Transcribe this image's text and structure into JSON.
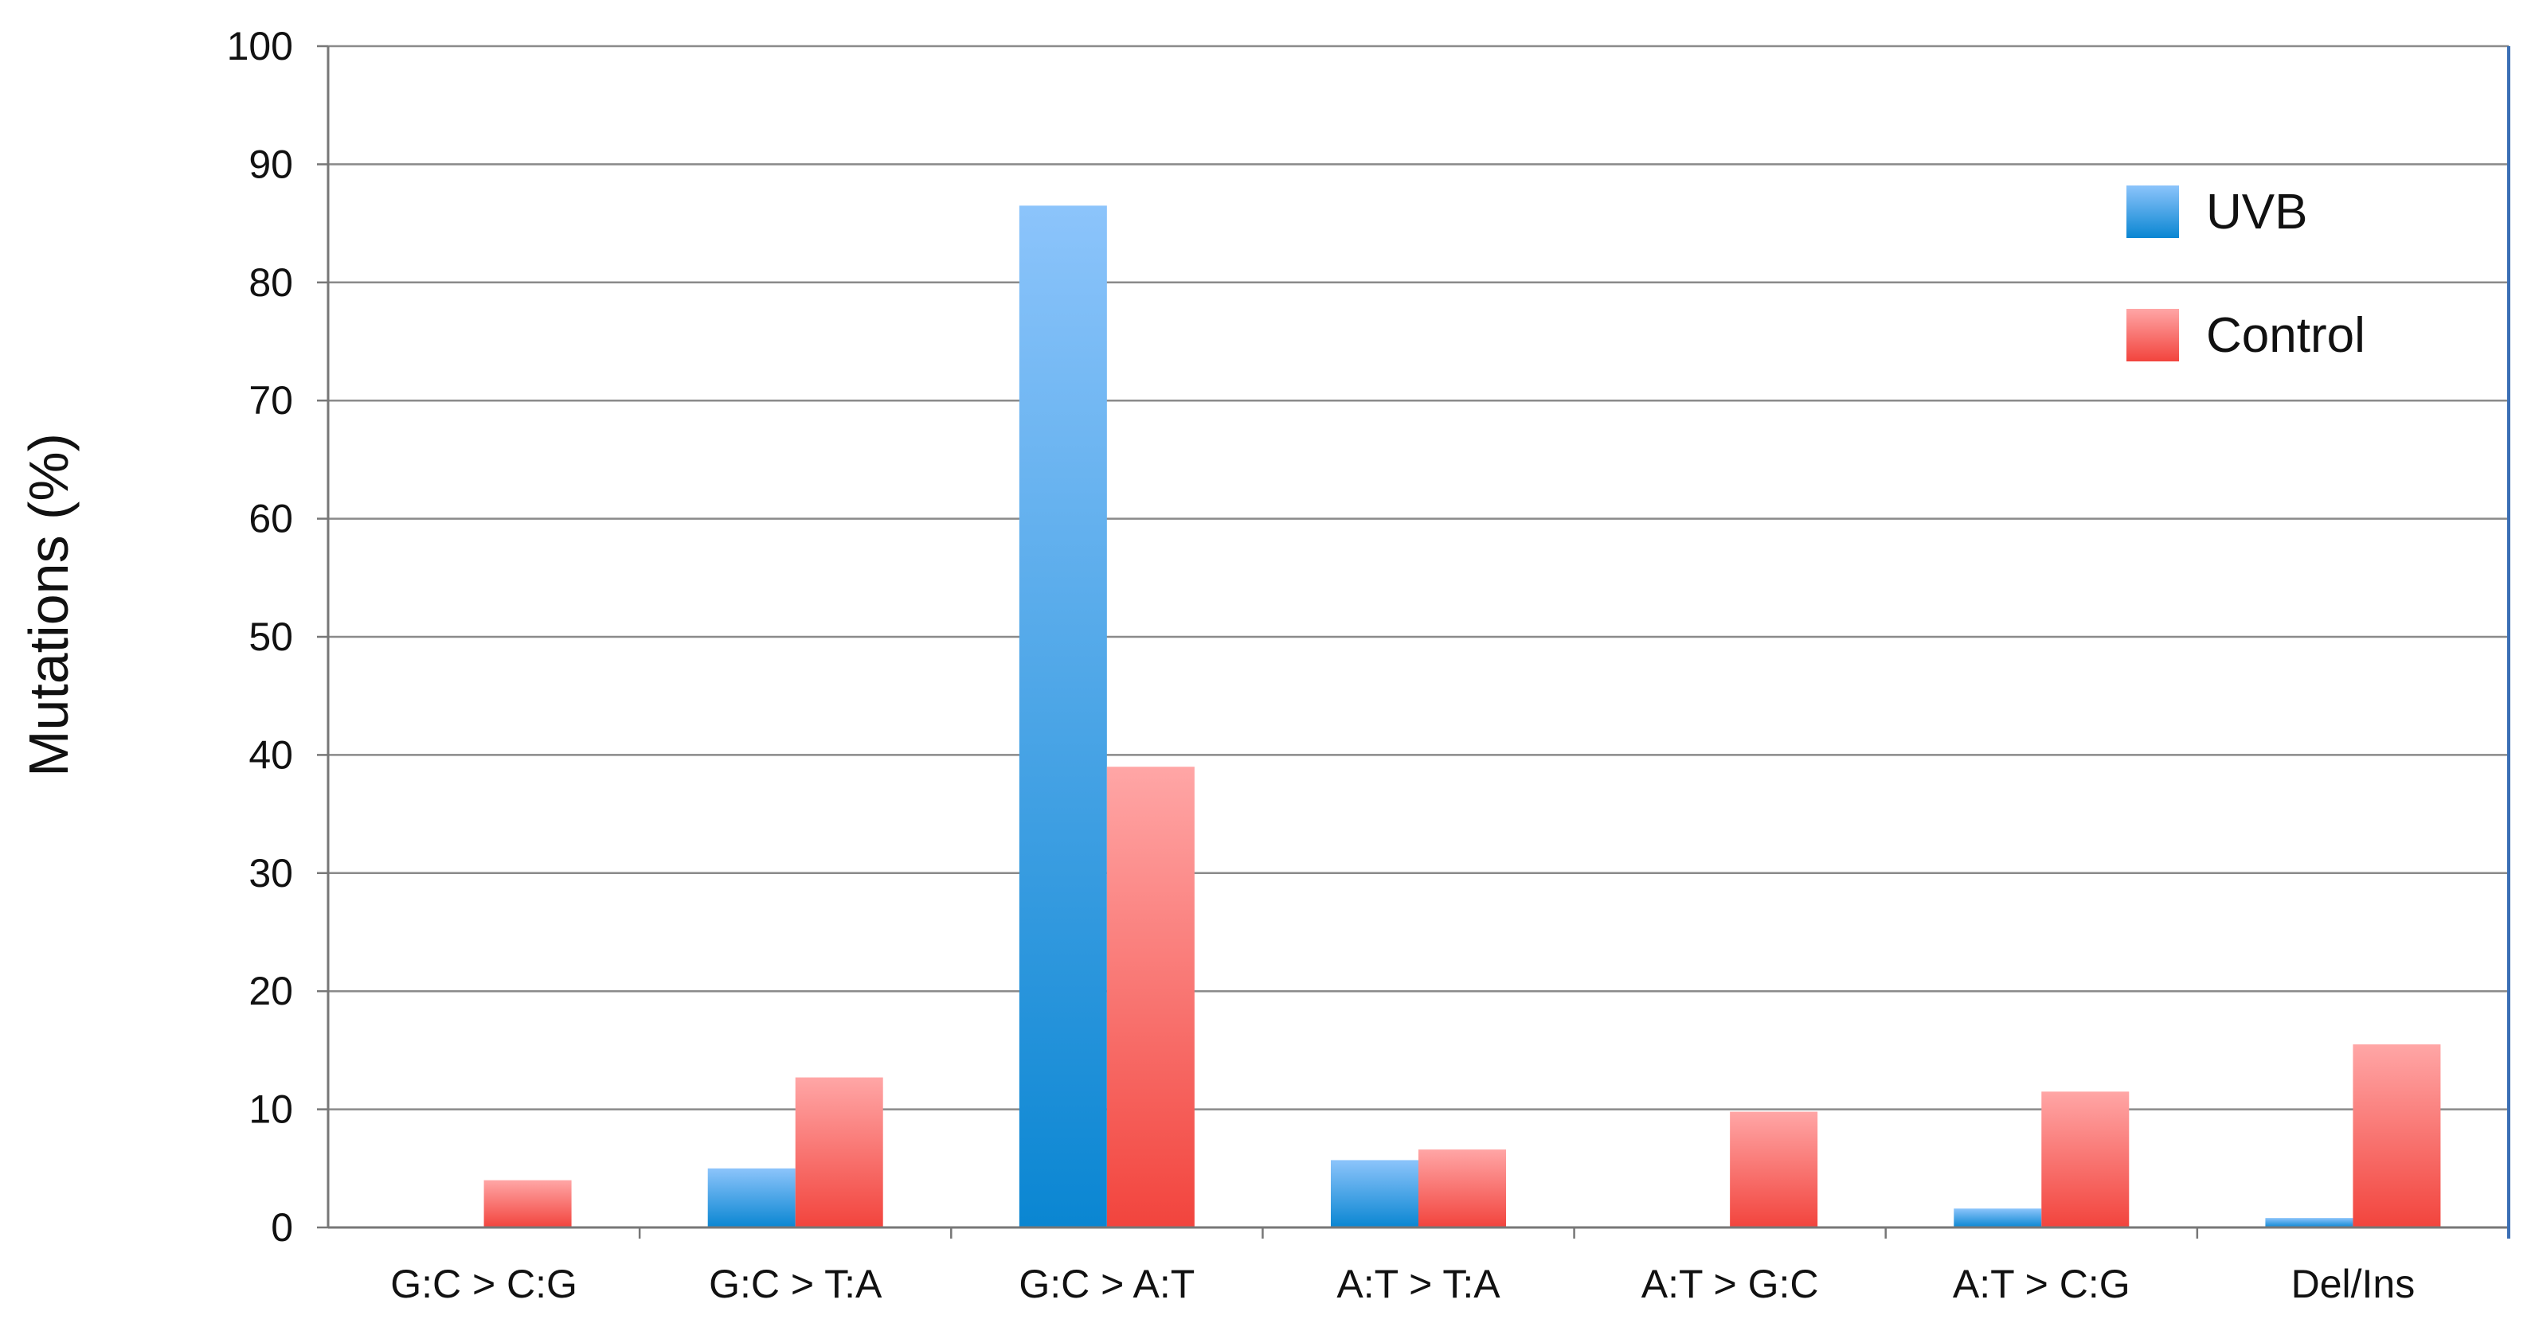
{
  "chart_data": {
    "type": "bar",
    "title": "",
    "xlabel": "",
    "ylabel": "Mutations (%)",
    "ylim": [
      0,
      100
    ],
    "yticks": [
      "0",
      "10",
      "20",
      "30",
      "40",
      "50",
      "60",
      "70",
      "80",
      "90",
      "100"
    ],
    "grid": true,
    "legend_position": "top-right",
    "categories": [
      "G:C > C:G",
      "G:C > T:A",
      "G:C > A:T",
      "A:T > T:A",
      "A:T > G:C",
      "A:T > C:G",
      "Del/Ins"
    ],
    "series": [
      {
        "name": "UVB",
        "values": [
          0,
          5,
          86.5,
          5.7,
          0,
          1.6,
          0.8
        ],
        "color_top": "#8CC4FB",
        "color_bottom": "#0A86D2"
      },
      {
        "name": "Control",
        "values": [
          4,
          12.7,
          39,
          6.6,
          9.8,
          11.5,
          15.5
        ],
        "color_top": "#FFA6A6",
        "color_bottom": "#F2443D"
      }
    ]
  }
}
